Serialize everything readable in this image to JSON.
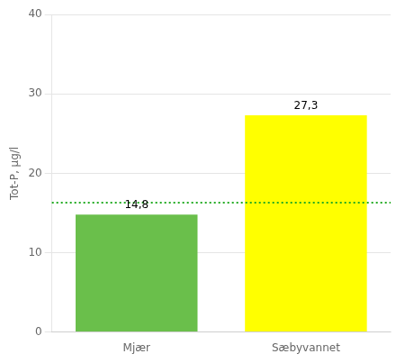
{
  "chart_data": {
    "type": "bar",
    "categories": [
      "Mjær",
      "Sæbyvannet"
    ],
    "values": [
      14.8,
      27.3
    ],
    "value_labels": [
      "14,8",
      "27,3"
    ],
    "data_labels": true,
    "colors": [
      "#6abf4b",
      "#ffff00"
    ],
    "ylabel": "Tot-P, µg/l",
    "ylim": [
      0,
      40
    ],
    "yticks": [
      0,
      10,
      20,
      30,
      40
    ],
    "grid": true,
    "reference_line": {
      "value": 16.3,
      "color": "#22aa22",
      "line_style": "dotted"
    }
  }
}
